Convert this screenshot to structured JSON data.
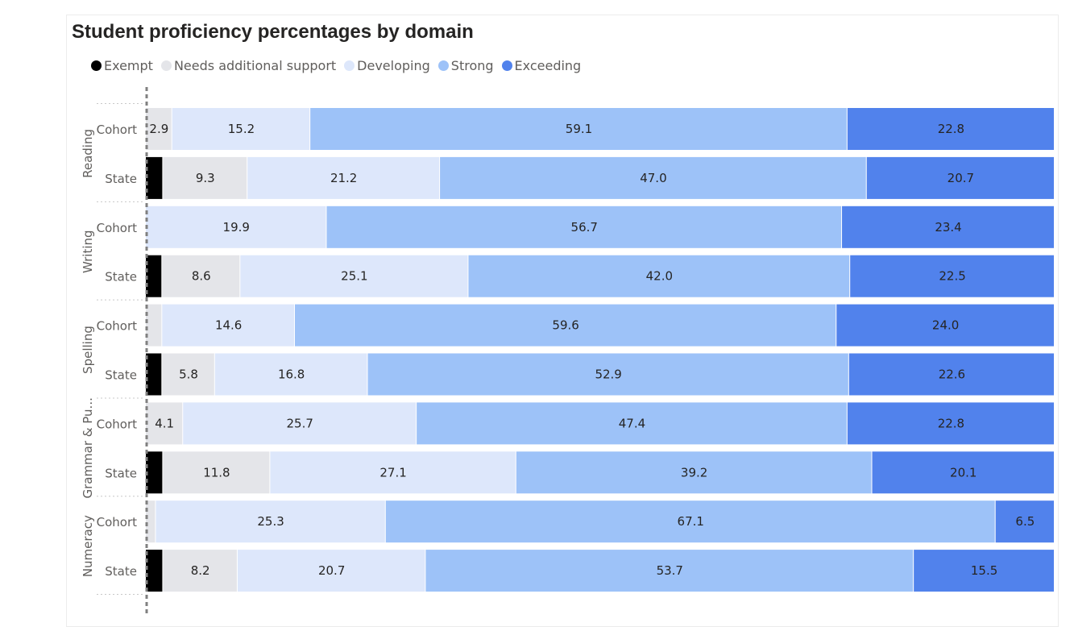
{
  "chart_data": {
    "type": "bar",
    "orientation": "horizontal",
    "stacked": true,
    "percent": true,
    "title": "Student proficiency percentages by domain",
    "legend_position": "top-left",
    "groups": [
      {
        "name": "Reading",
        "rows": [
          "Cohort",
          "State"
        ]
      },
      {
        "name": "Writing",
        "rows": [
          "Cohort",
          "State"
        ]
      },
      {
        "name": "Spelling",
        "rows": [
          "Cohort",
          "State"
        ]
      },
      {
        "name": "Grammar & Pu...",
        "rows": [
          "Cohort",
          "State"
        ]
      },
      {
        "name": "Numeracy",
        "rows": [
          "Cohort",
          "State"
        ]
      }
    ],
    "series": [
      {
        "name": "Exempt",
        "color": "#000000",
        "values": [
          0.0,
          1.9,
          0.0,
          1.8,
          0.0,
          1.8,
          0.0,
          1.9,
          0.0,
          1.9
        ],
        "labels": [
          "",
          "",
          "",
          "",
          "",
          "",
          "",
          "",
          "",
          ""
        ]
      },
      {
        "name": "Needs additional support",
        "color": "#e4e5e9",
        "values": [
          2.9,
          9.3,
          0.0,
          8.6,
          1.8,
          5.8,
          4.1,
          11.8,
          1.1,
          8.2
        ],
        "labels": [
          "2.9",
          "9.3",
          "",
          "8.6",
          "",
          "5.8",
          "4.1",
          "11.8",
          "",
          "8.2"
        ]
      },
      {
        "name": "Developing",
        "color": "#dde7fb",
        "values": [
          15.2,
          21.2,
          19.9,
          25.1,
          14.6,
          16.8,
          25.7,
          27.1,
          25.3,
          20.7
        ],
        "labels": [
          "15.2",
          "21.2",
          "19.9",
          "25.1",
          "14.6",
          "16.8",
          "25.7",
          "27.1",
          "25.3",
          "20.7"
        ]
      },
      {
        "name": "Strong",
        "color": "#9dc2f8",
        "values": [
          59.1,
          47.0,
          56.7,
          42.0,
          59.6,
          52.9,
          47.4,
          39.2,
          67.1,
          53.7
        ],
        "labels": [
          "59.1",
          "47.0",
          "56.7",
          "42.0",
          "59.6",
          "52.9",
          "47.4",
          "39.2",
          "67.1",
          "53.7"
        ]
      },
      {
        "name": "Exceeding",
        "color": "#5182ec",
        "values": [
          22.8,
          20.7,
          23.4,
          22.5,
          24.0,
          22.6,
          22.8,
          20.1,
          6.5,
          15.5
        ],
        "labels": [
          "22.8",
          "20.7",
          "23.4",
          "22.5",
          "24.0",
          "22.6",
          "22.8",
          "20.1",
          "6.5",
          "15.5"
        ]
      }
    ]
  }
}
